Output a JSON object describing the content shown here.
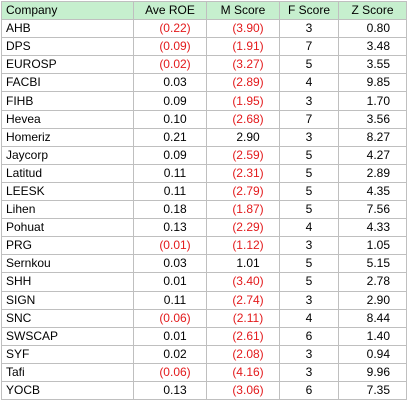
{
  "table": {
    "headers": [
      "Company",
      "Ave ROE",
      "M Score",
      "F Score",
      "Z Score"
    ],
    "rows": [
      {
        "company": "AHB",
        "roe": "(0.22)",
        "roe_neg": true,
        "m": "(3.90)",
        "m_neg": true,
        "f": "3",
        "z": "0.80"
      },
      {
        "company": "DPS",
        "roe": "(0.09)",
        "roe_neg": true,
        "m": "(1.91)",
        "m_neg": true,
        "f": "7",
        "z": "3.48"
      },
      {
        "company": "EUROSP",
        "roe": "(0.02)",
        "roe_neg": true,
        "m": "(3.27)",
        "m_neg": true,
        "f": "5",
        "z": "3.55"
      },
      {
        "company": "FACBI",
        "roe": "0.03",
        "roe_neg": false,
        "m": "(2.89)",
        "m_neg": true,
        "f": "4",
        "z": "9.85"
      },
      {
        "company": "FIHB",
        "roe": "0.09",
        "roe_neg": false,
        "m": "(1.95)",
        "m_neg": true,
        "f": "3",
        "z": "1.70"
      },
      {
        "company": "Hevea",
        "roe": "0.10",
        "roe_neg": false,
        "m": "(2.68)",
        "m_neg": true,
        "f": "7",
        "z": "3.56"
      },
      {
        "company": "Homeriz",
        "roe": "0.21",
        "roe_neg": false,
        "m": "2.90",
        "m_neg": false,
        "f": "3",
        "z": "8.27"
      },
      {
        "company": "Jaycorp",
        "roe": "0.09",
        "roe_neg": false,
        "m": "(2.59)",
        "m_neg": true,
        "f": "5",
        "z": "4.27"
      },
      {
        "company": "Latitud",
        "roe": "0.11",
        "roe_neg": false,
        "m": "(2.31)",
        "m_neg": true,
        "f": "5",
        "z": "2.89"
      },
      {
        "company": "LEESK",
        "roe": "0.11",
        "roe_neg": false,
        "m": "(2.79)",
        "m_neg": true,
        "f": "5",
        "z": "4.35"
      },
      {
        "company": "Lihen",
        "roe": "0.18",
        "roe_neg": false,
        "m": "(1.87)",
        "m_neg": true,
        "f": "5",
        "z": "7.56"
      },
      {
        "company": "Pohuat",
        "roe": "0.13",
        "roe_neg": false,
        "m": "(2.29)",
        "m_neg": true,
        "f": "4",
        "z": "4.33"
      },
      {
        "company": "PRG",
        "roe": "(0.01)",
        "roe_neg": true,
        "m": "(1.12)",
        "m_neg": true,
        "f": "3",
        "z": "1.05"
      },
      {
        "company": "Sernkou",
        "roe": "0.03",
        "roe_neg": false,
        "m": "1.01",
        "m_neg": false,
        "f": "5",
        "z": "5.15"
      },
      {
        "company": "SHH",
        "roe": "0.01",
        "roe_neg": false,
        "m": "(3.40)",
        "m_neg": true,
        "f": "5",
        "z": "2.78"
      },
      {
        "company": "SIGN",
        "roe": "0.11",
        "roe_neg": false,
        "m": "(2.74)",
        "m_neg": true,
        "f": "3",
        "z": "2.90"
      },
      {
        "company": "SNC",
        "roe": "(0.06)",
        "roe_neg": true,
        "m": "(2.11)",
        "m_neg": true,
        "f": "4",
        "z": "8.44"
      },
      {
        "company": "SWSCAP",
        "roe": "0.01",
        "roe_neg": false,
        "m": "(2.61)",
        "m_neg": true,
        "f": "6",
        "z": "1.40"
      },
      {
        "company": "SYF",
        "roe": "0.02",
        "roe_neg": false,
        "m": "(2.08)",
        "m_neg": true,
        "f": "3",
        "z": "0.94"
      },
      {
        "company": "Tafi",
        "roe": "(0.06)",
        "roe_neg": true,
        "m": "(4.16)",
        "m_neg": true,
        "f": "3",
        "z": "9.96"
      },
      {
        "company": "YOCB",
        "roe": "0.13",
        "roe_neg": false,
        "m": "(3.06)",
        "m_neg": true,
        "f": "6",
        "z": "7.35"
      }
    ]
  },
  "colors": {
    "header_fill": "#c6efce",
    "negative_text": "#e31a1c",
    "grid": "#bfbfbf"
  }
}
